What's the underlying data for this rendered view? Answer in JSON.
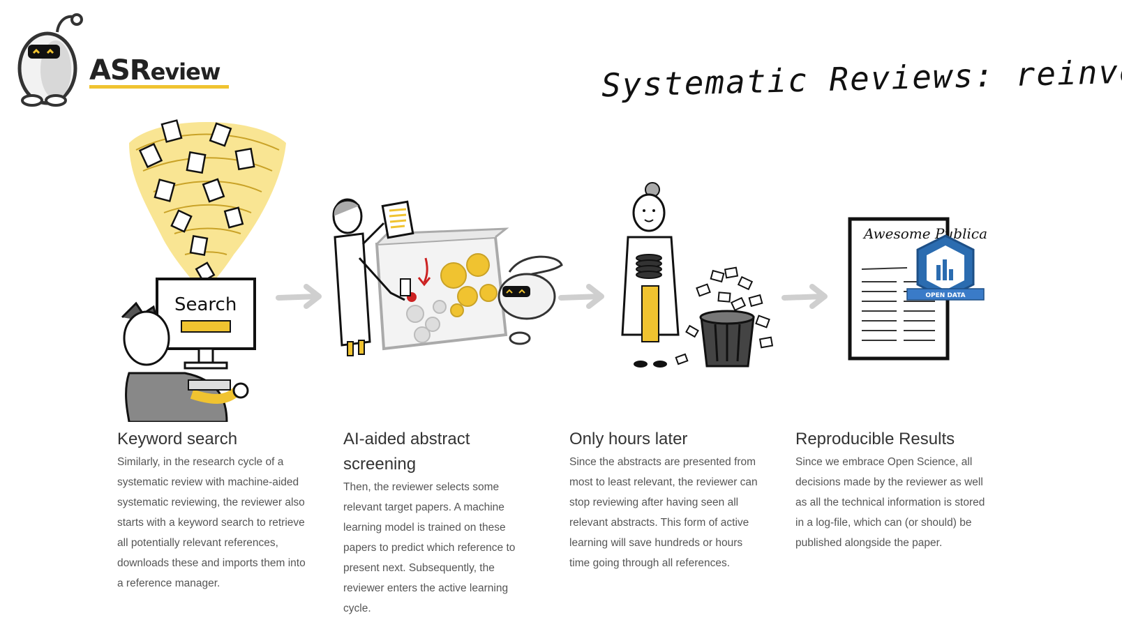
{
  "logo": {
    "brand_main": "ASR",
    "brand_rest": "eview",
    "icon": "robot-head-icon"
  },
  "tagline": "Systematic Reviews: reinvented",
  "colors": {
    "accent": "#f0c330",
    "arrow": "#cfcfcf",
    "text": "#333333",
    "body_text": "#555555",
    "badge": "#2b6cb0"
  },
  "illustrations": {
    "search_screen_text": "Search",
    "paper_heading": "Awesome Publica",
    "badge_text": "OPEN DATA"
  },
  "steps": [
    {
      "title": "Keyword search",
      "body": "Similarly, in the research cycle of a systematic review with machine-aided systematic reviewing, the reviewer also starts with a keyword search to retrieve all potentially relevant references, downloads these and imports them into a reference manager."
    },
    {
      "title": "AI-aided abstract screening",
      "body": "Then, the reviewer selects some relevant target papers. A machine learning model is trained on these papers to predict which reference to present next. Subsequently, the reviewer enters the active learning cycle."
    },
    {
      "title": "Only hours later",
      "body": "Since the abstracts are presented from most to least relevant, the reviewer can stop reviewing after having seen all relevant abstracts. This form of active learning will save hundreds or hours time going through all references."
    },
    {
      "title": "Reproducible Results",
      "body": "Since we embrace Open Science, all decisions made by the reviewer as well as all the technical information is stored in a log-file, which can (or should) be published alongside the paper."
    }
  ]
}
